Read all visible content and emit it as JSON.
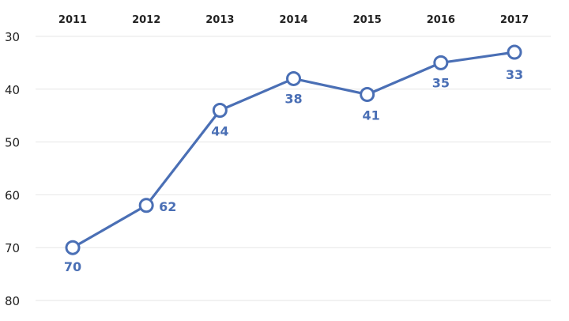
{
  "chart_data": {
    "type": "line",
    "x": [
      "2011",
      "2012",
      "2013",
      "2014",
      "2015",
      "2016",
      "2017"
    ],
    "series": [
      {
        "values": [
          70,
          62,
          44,
          38,
          41,
          35,
          33
        ],
        "color": "#4a6fb5"
      }
    ],
    "data_labels": [
      "70",
      "62",
      "44",
      "38",
      "41",
      "35",
      "33"
    ],
    "y_ticks": [
      30,
      40,
      50,
      60,
      70,
      80
    ],
    "ylim": [
      30,
      80
    ],
    "y_inverted": true,
    "x_axis_position": "top",
    "grid": true,
    "title": "",
    "xlabel": "",
    "ylabel": ""
  }
}
